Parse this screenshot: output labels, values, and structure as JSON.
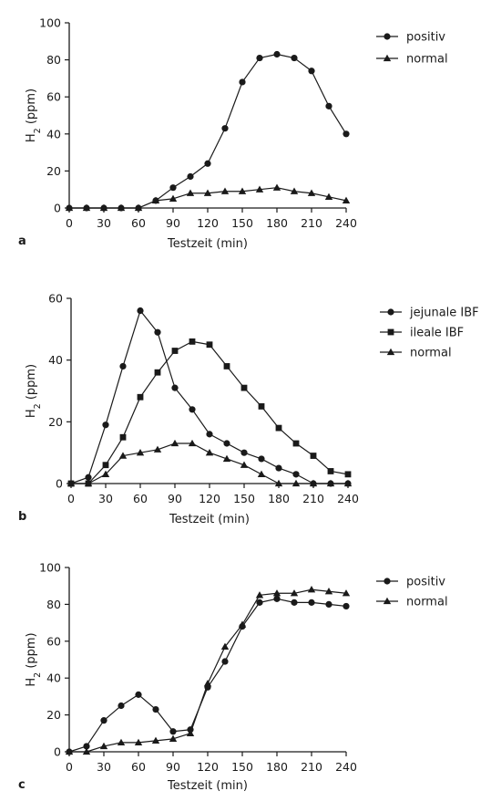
{
  "chart_data": [
    {
      "type": "line",
      "panel_label": "a",
      "xlabel": "Testzeit (min)",
      "ylabel_main": "H",
      "ylabel_sub": "2",
      "ylabel_tail": " (ppm)",
      "xlim": [
        0,
        240
      ],
      "ylim": [
        0,
        100
      ],
      "xticks": [
        0,
        30,
        60,
        90,
        120,
        150,
        180,
        210,
        240
      ],
      "yticks": [
        0,
        20,
        40,
        60,
        80,
        100
      ],
      "legend_position": "top-right",
      "x": [
        0,
        15,
        30,
        45,
        60,
        75,
        90,
        105,
        120,
        135,
        150,
        165,
        180,
        195,
        210,
        225,
        240
      ],
      "series": [
        {
          "name": "positiv",
          "marker": "circle",
          "values": [
            0,
            0,
            0,
            0,
            0,
            4,
            11,
            17,
            24,
            43,
            68,
            81,
            83,
            81,
            74,
            55,
            40
          ]
        },
        {
          "name": "normal",
          "marker": "triangle",
          "values": [
            0,
            0,
            0,
            0,
            0,
            4,
            5,
            8,
            8,
            9,
            9,
            10,
            11,
            9,
            8,
            6,
            4
          ]
        }
      ]
    },
    {
      "type": "line",
      "panel_label": "b",
      "xlabel": "Testzeit (min)",
      "ylabel_main": "H",
      "ylabel_sub": "2",
      "ylabel_tail": " (ppm)",
      "xlim": [
        0,
        240
      ],
      "ylim": [
        0,
        60
      ],
      "xticks": [
        0,
        30,
        60,
        90,
        120,
        150,
        180,
        210,
        240
      ],
      "yticks": [
        0,
        20,
        40,
        60
      ],
      "legend_position": "top-right",
      "x": [
        0,
        15,
        30,
        45,
        60,
        75,
        90,
        105,
        120,
        135,
        150,
        165,
        180,
        195,
        210,
        225,
        240
      ],
      "series": [
        {
          "name": "jejunale IBF",
          "marker": "circle",
          "values": [
            0,
            2,
            19,
            38,
            56,
            49,
            31,
            24,
            16,
            13,
            10,
            8,
            5,
            3,
            0,
            0,
            0
          ]
        },
        {
          "name": "ileale IBF",
          "marker": "square",
          "values": [
            0,
            0,
            6,
            15,
            28,
            36,
            43,
            46,
            45,
            38,
            31,
            25,
            18,
            13,
            9,
            4,
            3
          ]
        },
        {
          "name": "normal",
          "marker": "triangle",
          "values": [
            0,
            0,
            3,
            9,
            10,
            11,
            13,
            13,
            10,
            8,
            6,
            3,
            0,
            0,
            0,
            0,
            0
          ]
        }
      ]
    },
    {
      "type": "line",
      "panel_label": "c",
      "xlabel": "Testzeit (min)",
      "ylabel_main": "H",
      "ylabel_sub": "2",
      "ylabel_tail": " (ppm)",
      "xlim": [
        0,
        240
      ],
      "ylim": [
        0,
        100
      ],
      "xticks": [
        0,
        30,
        60,
        90,
        120,
        150,
        180,
        210,
        240
      ],
      "yticks": [
        0,
        20,
        40,
        60,
        80,
        100
      ],
      "legend_position": "top-right",
      "x": [
        0,
        15,
        30,
        45,
        60,
        75,
        90,
        105,
        120,
        135,
        150,
        165,
        180,
        195,
        210,
        225,
        240
      ],
      "series": [
        {
          "name": "positiv",
          "marker": "circle",
          "values": [
            0,
            3,
            17,
            25,
            31,
            23,
            11,
            12,
            35,
            49,
            68,
            81,
            83,
            81,
            81,
            80,
            79
          ]
        },
        {
          "name": "normal",
          "marker": "triangle",
          "values": [
            0,
            0,
            3,
            5,
            5,
            6,
            7,
            10,
            37,
            57,
            69,
            85,
            86,
            86,
            88,
            87,
            86
          ]
        }
      ]
    }
  ]
}
